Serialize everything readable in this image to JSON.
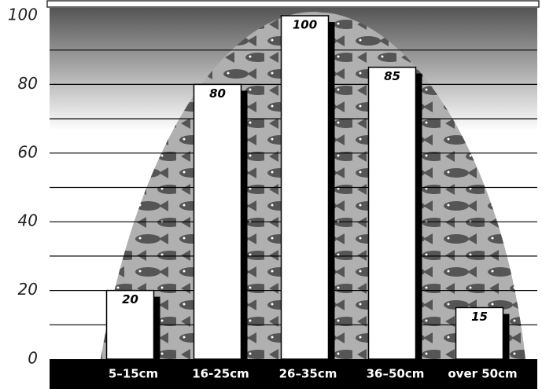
{
  "chart_data": {
    "type": "bar",
    "categories": [
      "5–15cm",
      "16-25cm",
      "26–35cm",
      "36–50cm",
      "over 50cm"
    ],
    "values": [
      20,
      80,
      100,
      85,
      15
    ],
    "color": "#ffffff",
    "ylim": [
      0,
      100
    ],
    "yticks": [
      0,
      20,
      40,
      60,
      80,
      100
    ],
    "grid_lines": [
      10,
      20,
      30,
      40,
      50,
      60,
      70,
      80,
      90
    ],
    "grid": true
  }
}
